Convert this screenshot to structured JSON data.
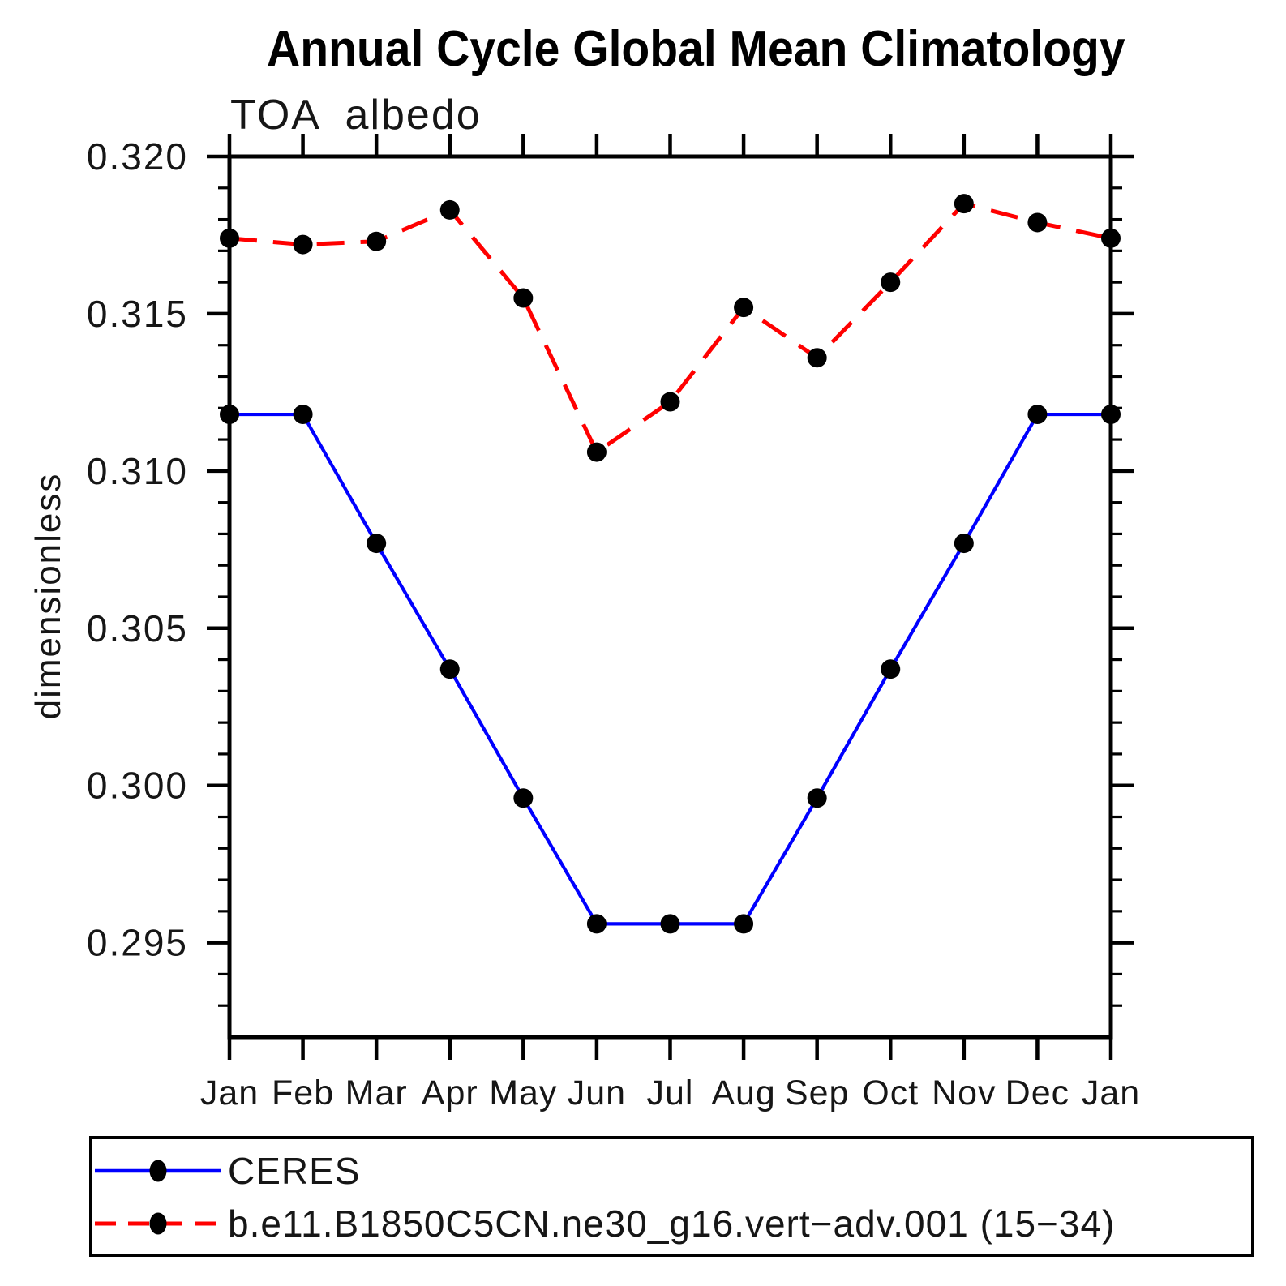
{
  "title": "Annual Cycle Global Mean Climatology",
  "chart_data": {
    "type": "line",
    "title": "Annual Cycle Global Mean Climatology",
    "subtitle_left": "TOA albedo",
    "ylabel": "dimensionless",
    "categories": [
      "Jan",
      "Feb",
      "Mar",
      "Apr",
      "May",
      "Jun",
      "Jul",
      "Aug",
      "Sep",
      "Oct",
      "Nov",
      "Dec",
      "Jan"
    ],
    "series": [
      {
        "name": "CERES",
        "color": "#0000ff",
        "line_style": "solid",
        "values": [
          0.3118,
          0.3118,
          0.3077,
          0.3037,
          0.2996,
          0.2956,
          0.2956,
          0.2956,
          0.2996,
          0.3037,
          0.3077,
          0.3118,
          0.3118
        ]
      },
      {
        "name": "b.e11.B1850C5CN.ne30_g16.vert−adv.001 (15−34)",
        "color": "#ff0000",
        "line_style": "dashed",
        "values": [
          0.3174,
          0.3172,
          0.3173,
          0.3183,
          0.3155,
          0.3106,
          0.3122,
          0.3152,
          0.3136,
          0.316,
          0.3185,
          0.3179,
          0.3174
        ]
      }
    ],
    "ylim": [
      0.292,
      0.32
    ],
    "ytick_major": [
      0.295,
      0.3,
      0.305,
      0.31,
      0.315,
      0.32
    ],
    "ytick_major_labels": [
      "0.295",
      "0.300",
      "0.305",
      "0.310",
      "0.315",
      "0.320"
    ],
    "ytick_minor_step": 0.001,
    "marker": "filled-circle",
    "marker_color": "#000000",
    "legend_position": "bottom-left",
    "grid": false
  }
}
